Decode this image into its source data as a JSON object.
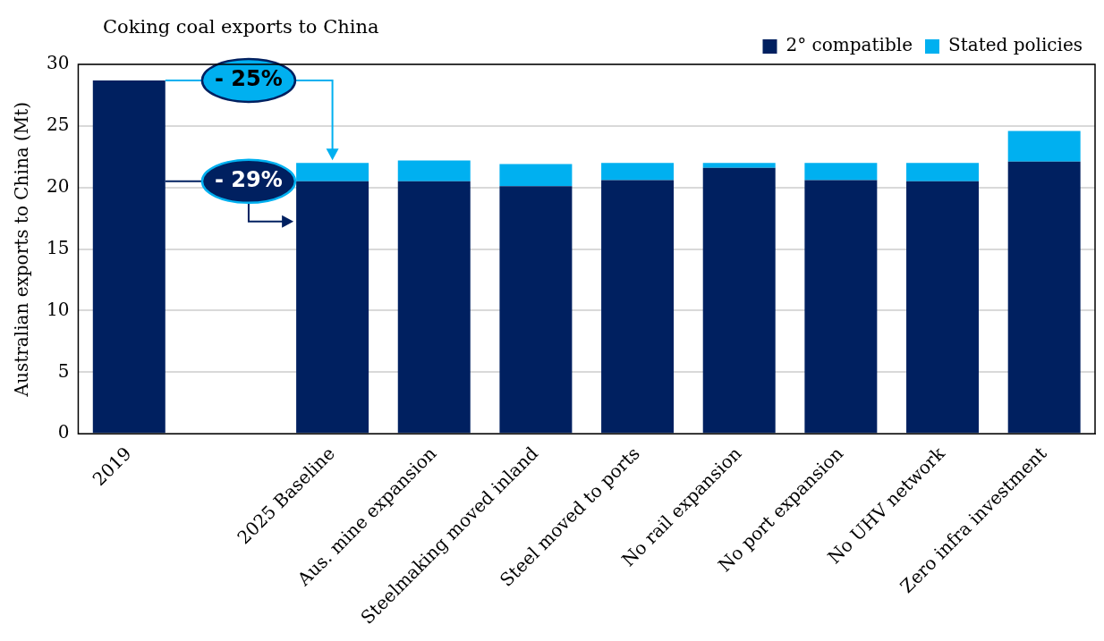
{
  "chart_data": {
    "type": "bar",
    "stacked": true,
    "title": "Coking coal exports to China",
    "ylabel": "Australian exports to China (Mt)",
    "categories": [
      "2019",
      null,
      "2025 Baseline",
      "Aus. mine expansion",
      "Steelmaking moved inland",
      "Steel moved to ports",
      "No rail expansion",
      "No port expansion",
      "No UHV network",
      "Zero infra investment"
    ],
    "series": [
      {
        "name": "2° compatible",
        "color": "#002060",
        "values": [
          28.7,
          null,
          20.5,
          20.5,
          20.1,
          20.6,
          21.6,
          20.6,
          20.5,
          22.1
        ]
      },
      {
        "name": "Stated policies",
        "color": "#00b0f0",
        "values": [
          null,
          null,
          1.5,
          1.7,
          1.8,
          1.4,
          0.4,
          1.4,
          1.5,
          2.5
        ]
      }
    ],
    "ylim": [
      0,
      30
    ],
    "yticks": [
      0,
      5,
      10,
      15,
      20,
      25,
      30
    ],
    "grid": "y",
    "legend": "top right",
    "annotations": [
      "- 25%",
      "- 29%"
    ]
  }
}
